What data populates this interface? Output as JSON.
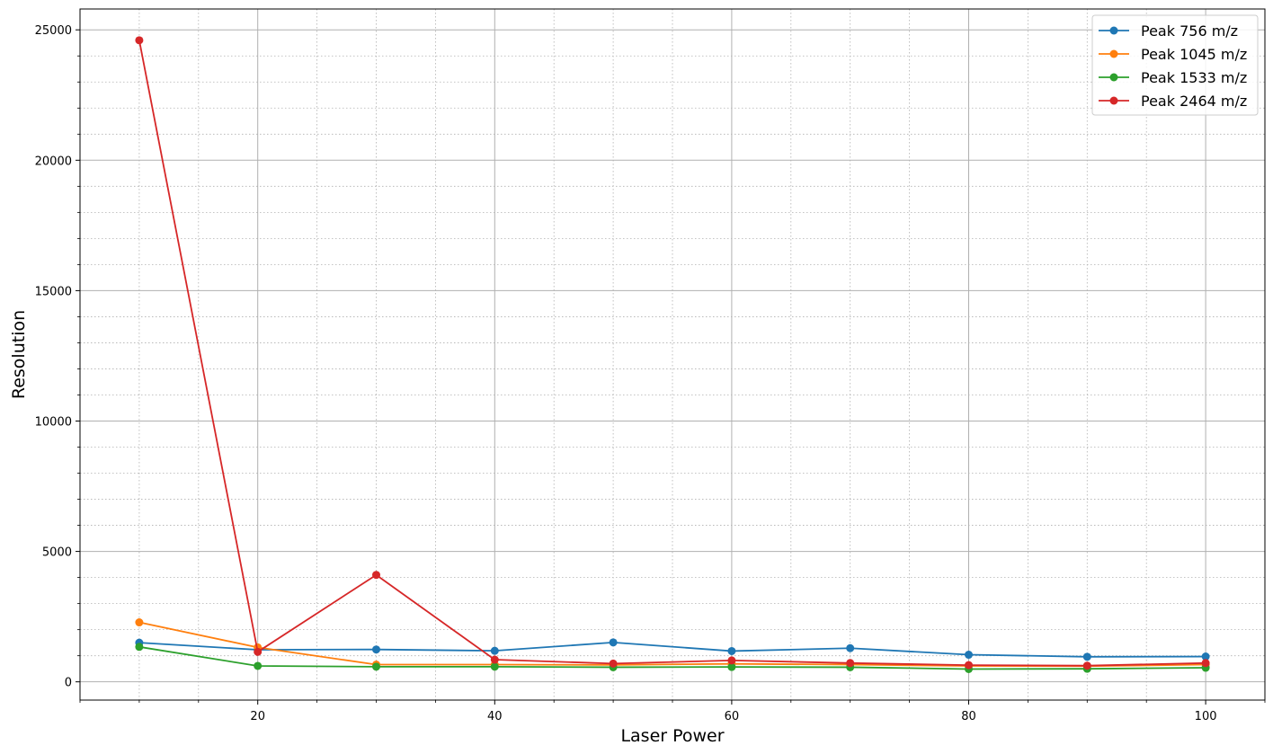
{
  "chart_data": {
    "type": "line",
    "title": "",
    "xlabel": "Laser Power",
    "ylabel": "Resolution",
    "xlim": [
      5,
      105
    ],
    "ylim": [
      -700,
      25800
    ],
    "x": [
      10,
      20,
      30,
      40,
      50,
      60,
      70,
      80,
      90,
      100
    ],
    "xticks": [
      20,
      40,
      60,
      80,
      100
    ],
    "yticks": [
      0,
      5000,
      10000,
      15000,
      20000,
      25000
    ],
    "xminor_step": 5,
    "yminor_step": 1000,
    "grid": "major solid, minor dotted",
    "legend_position": "top-right",
    "series": [
      {
        "name": "Peak 756 m/z",
        "color": "#1f77b4",
        "values": [
          1500,
          1230,
          1240,
          1190,
          1510,
          1180,
          1290,
          1040,
          960,
          970
        ]
      },
      {
        "name": "Peak 1045 m/z",
        "color": "#ff7f0e",
        "values": [
          2280,
          1320,
          660,
          660,
          650,
          690,
          660,
          610,
          600,
          660
        ]
      },
      {
        "name": "Peak 1533 m/z",
        "color": "#2ca02c",
        "values": [
          1340,
          610,
          580,
          580,
          560,
          570,
          560,
          490,
          500,
          540
        ]
      },
      {
        "name": "Peak 2464 m/z",
        "color": "#d62728",
        "values": [
          24600,
          1150,
          4100,
          850,
          700,
          820,
          720,
          640,
          620,
          720
        ]
      }
    ]
  }
}
